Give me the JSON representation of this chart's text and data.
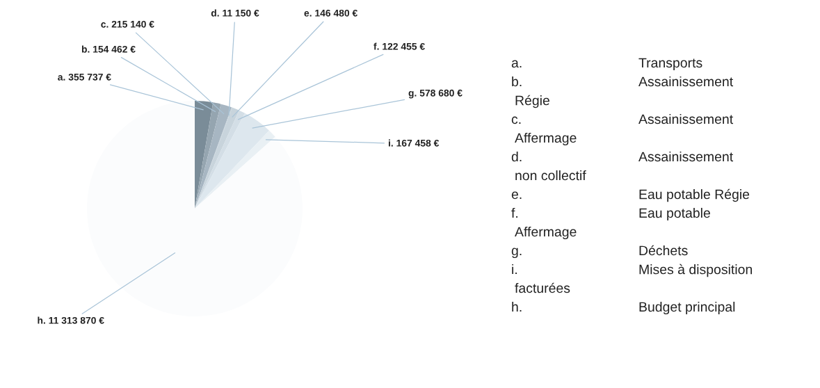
{
  "chart_data": {
    "type": "pie",
    "categories": [
      "a. Transports",
      "b. Assainissement Régie",
      "c. Assainissement Affermage",
      "d. Assainissement non collectif",
      "e. Eau potable Régie",
      "f. Eau potable Affermage",
      "g. Déchets",
      "i. Mises à disposition facturées",
      "h. Budget principal"
    ],
    "values": [
      355737,
      154462,
      215140,
      11150,
      146480,
      122455,
      578680,
      167458,
      11313870
    ],
    "value_labels": [
      "a. 355 737 €",
      "b. 154 462 €",
      "c. 215 140 €",
      "d. 11 150 €",
      "e. 146 480 €",
      "f. 122 455 €",
      "g. 578 680 €",
      "i. 167 458 €",
      "h. 11 313 870 €"
    ],
    "colors": [
      "#7a8c98",
      "#95a5b0",
      "#a7b6c2",
      "#bccad4",
      "#c8d4dc",
      "#d3dee6",
      "#dde7ee",
      "#e9f0f4",
      "#fbfcfd"
    ]
  }
}
